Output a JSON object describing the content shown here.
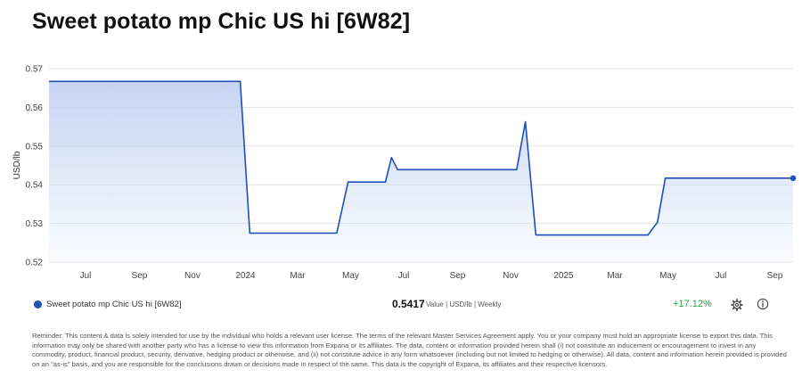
{
  "title": "Sweet potato mp Chic US hi [6W82]",
  "chart_data": {
    "type": "area",
    "ylabel": "USD/lb",
    "ylim": [
      0.52,
      0.57
    ],
    "yticks": [
      0.52,
      0.53,
      0.54,
      0.55,
      0.56,
      0.57
    ],
    "x_range": [
      "2023-05-20",
      "2025-09-22"
    ],
    "x_ticks": [
      {
        "date": "2023-07-01",
        "label": "Jul"
      },
      {
        "date": "2023-09-01",
        "label": "Sep"
      },
      {
        "date": "2023-11-01",
        "label": "Nov"
      },
      {
        "date": "2024-01-01",
        "label": "2024"
      },
      {
        "date": "2024-03-01",
        "label": "Mar"
      },
      {
        "date": "2024-05-01",
        "label": "May"
      },
      {
        "date": "2024-07-01",
        "label": "Jul"
      },
      {
        "date": "2024-09-01",
        "label": "Sep"
      },
      {
        "date": "2024-11-01",
        "label": "Nov"
      },
      {
        "date": "2025-01-01",
        "label": "2025"
      },
      {
        "date": "2025-03-01",
        "label": "Mar"
      },
      {
        "date": "2025-05-01",
        "label": "May"
      },
      {
        "date": "2025-07-01",
        "label": "Jul"
      },
      {
        "date": "2025-09-01",
        "label": "Sep"
      }
    ],
    "grid": true,
    "series": [
      {
        "name": "Sweet potato mp Chic US hi [6W82]",
        "color": "#1f4fb6",
        "points": [
          [
            "2023-05-20",
            0.5667
          ],
          [
            "2023-12-26",
            0.5667
          ],
          [
            "2024-01-06",
            0.5275
          ],
          [
            "2024-04-15",
            0.5275
          ],
          [
            "2024-04-28",
            0.5407
          ],
          [
            "2024-06-10",
            0.5407
          ],
          [
            "2024-06-17",
            0.547
          ],
          [
            "2024-06-24",
            0.5439
          ],
          [
            "2024-11-08",
            0.5439
          ],
          [
            "2024-11-18",
            0.5563
          ],
          [
            "2024-11-30",
            0.527
          ],
          [
            "2025-04-08",
            0.527
          ],
          [
            "2025-04-19",
            0.5303
          ],
          [
            "2025-04-28",
            0.5417
          ],
          [
            "2025-09-22",
            0.5417
          ]
        ]
      }
    ]
  },
  "legend": {
    "name": "Sweet potato mp Chic US hi [6W82]",
    "value": "0.5417",
    "meta": "Value | USD/lb | Weekly",
    "change": "+17.12%",
    "settings_icon": "gear-icon",
    "info_icon": "info-icon"
  },
  "disclaimer": "Reminder: This content & data is solely intended for use by the individual who holds a relevant user license. The terms of the relevant Master Services Agreement apply. You or your company must hold an appropriate license to export this data. This information may only be shared with another party who has a license to view this information from Expana or its affiliates. The data, content or information provided herein shall (i) not constitute an inducement or encouragement to invest in any commodity, product, financial product, security, derivative, hedging product or otherwise, and (ii) not constitute advice in any form whatsoever (including but not limited to hedging or otherwise). All data, content and information herein provided is provided on an \"as-is\" basis, and you are responsible for the conclusions drawn or decisions made in respect of the same. This data is the copyright of Expana, its affiliates and their respective licensors."
}
